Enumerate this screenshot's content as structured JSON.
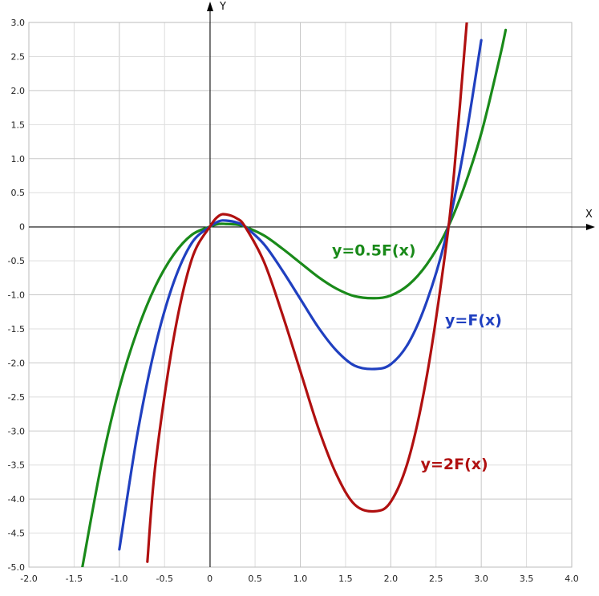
{
  "chart_data": {
    "type": "line",
    "title": "",
    "xlabel": "X",
    "ylabel": "Y",
    "xlim": [
      -2.0,
      4.0
    ],
    "ylim": [
      -5.0,
      3.0
    ],
    "grid": true,
    "x_ticks": [
      "-2.0",
      "-1.5",
      "-1.0",
      "-0.5",
      "0",
      "0.5",
      "1.0",
      "1.5",
      "2.0",
      "2.5",
      "3.0",
      "3.5",
      "4.0"
    ],
    "y_ticks": [
      "3.0",
      "2.5",
      "2.0",
      "1.5",
      "1.0",
      "0.5",
      "0",
      "-0.5",
      "-1.0",
      "-1.5",
      "-2.0",
      "-2.5",
      "-3.0",
      "-3.5",
      "-4.0",
      "-4.5",
      "-5.0"
    ],
    "series": [
      {
        "name": "y=0.5F(x)",
        "color": "#1a8a1a",
        "x": [
          -1.41,
          -1.2,
          -1.0,
          -0.8,
          -0.6,
          -0.4,
          -0.2,
          0,
          0.1,
          0.18,
          0.3,
          0.39,
          0.6,
          0.8,
          1.0,
          1.2,
          1.4,
          1.6,
          1.82,
          2.0,
          2.2,
          2.4,
          2.6,
          2.8,
          3.0,
          3.2,
          3.27
        ],
        "y": [
          -5.01,
          -3.5,
          -2.37,
          -1.52,
          -0.87,
          -0.41,
          -0.12,
          0,
          0.04,
          0.04,
          0.03,
          0,
          -0.13,
          -0.32,
          -0.53,
          -0.74,
          -0.91,
          -1.02,
          -1.05,
          -1.01,
          -0.85,
          -0.55,
          -0.1,
          0.54,
          1.37,
          2.46,
          2.89
        ]
      },
      {
        "name": "y=F(x)",
        "color": "#2040c0",
        "x": [
          -1.0,
          -0.8,
          -0.6,
          -0.4,
          -0.2,
          0,
          0.1,
          0.18,
          0.3,
          0.39,
          0.6,
          0.8,
          1.0,
          1.2,
          1.4,
          1.6,
          1.82,
          2.0,
          2.2,
          2.4,
          2.6,
          2.8,
          3.0
        ],
        "y": [
          -4.74,
          -3.04,
          -1.74,
          -0.82,
          -0.24,
          0,
          0.08,
          0.09,
          0.06,
          0,
          -0.26,
          -0.64,
          -1.06,
          -1.48,
          -1.82,
          -2.04,
          -2.09,
          -2.02,
          -1.7,
          -1.09,
          -0.2,
          1.08,
          2.74
        ]
      },
      {
        "name": "y=2F(x)",
        "color": "#b01010",
        "x": [
          -0.69,
          -0.6,
          -0.4,
          -0.2,
          0,
          0.1,
          0.18,
          0.3,
          0.39,
          0.6,
          0.8,
          1.0,
          1.2,
          1.4,
          1.6,
          1.82,
          2.0,
          2.2,
          2.4,
          2.6,
          2.7,
          2.84
        ],
        "y": [
          -4.92,
          -3.48,
          -1.64,
          -0.48,
          0,
          0.16,
          0.18,
          0.12,
          0,
          -0.52,
          -1.28,
          -2.12,
          -2.96,
          -3.64,
          -4.08,
          -4.18,
          -4.04,
          -3.4,
          -2.18,
          -0.4,
          0.8,
          3.0
        ]
      }
    ],
    "annotations": [
      {
        "text": "y=0.5F(x)",
        "color": "#1a8a1a",
        "x": 1.35,
        "y": -0.42
      },
      {
        "text": "y=F(x)",
        "color": "#2040c0",
        "x": 2.6,
        "y": -1.45
      },
      {
        "text": "y=2F(x)",
        "color": "#b01010",
        "x": 2.33,
        "y": -3.56
      }
    ]
  }
}
